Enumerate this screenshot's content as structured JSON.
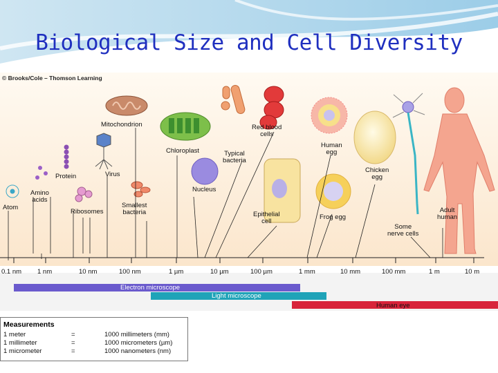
{
  "title": "Biological Size and Cell Diversity",
  "credit": "© Brooks/Cole – Thomson Learning",
  "colors": {
    "title": "#1f2fbf",
    "panel": "#fcefdc",
    "electron": "#6a5acd",
    "light": "#1fa3b8",
    "eye": "#d8233a"
  },
  "scale_ticks": [
    "0.1 nm",
    "1 nm",
    "10 nm",
    "100 nm",
    "1 µm",
    "10 µm",
    "100 µm",
    "1 mm",
    "10 mm",
    "100 mm",
    "1 m",
    "10 m"
  ],
  "objects": {
    "atom": "Atom",
    "amino": "Amino\nacids",
    "protein": "Protein",
    "ribosomes": "Ribosomes",
    "virus": "Virus",
    "mito": "Mitochondrion",
    "smallbact": "Smallest\nbacteria",
    "chloro": "Chloroplast",
    "nucleus": "Nucleus",
    "typbact": "Typical\nbacteria",
    "rbc": "Red blood\ncells",
    "epith": "Epithelial\ncell",
    "humanegg": "Human\negg",
    "frogegg": "Frog egg",
    "chicken": "Chicken\negg",
    "nerve": "Some\nnerve cells",
    "human": "Adult\nhuman"
  },
  "bars": {
    "electron": "Electron microscope",
    "light": "Light microscope",
    "eye": "Human eye"
  },
  "measurements": {
    "header": "Measurements",
    "rows": [
      {
        "unit": "1 meter",
        "eq": "=",
        "val": "1000 millimeters (mm)"
      },
      {
        "unit": "1 millimeter",
        "eq": "=",
        "val": "1000 micrometers (µm)"
      },
      {
        "unit": "1 micrometer",
        "eq": "=",
        "val": "1000 nanometers (nm)"
      }
    ]
  }
}
